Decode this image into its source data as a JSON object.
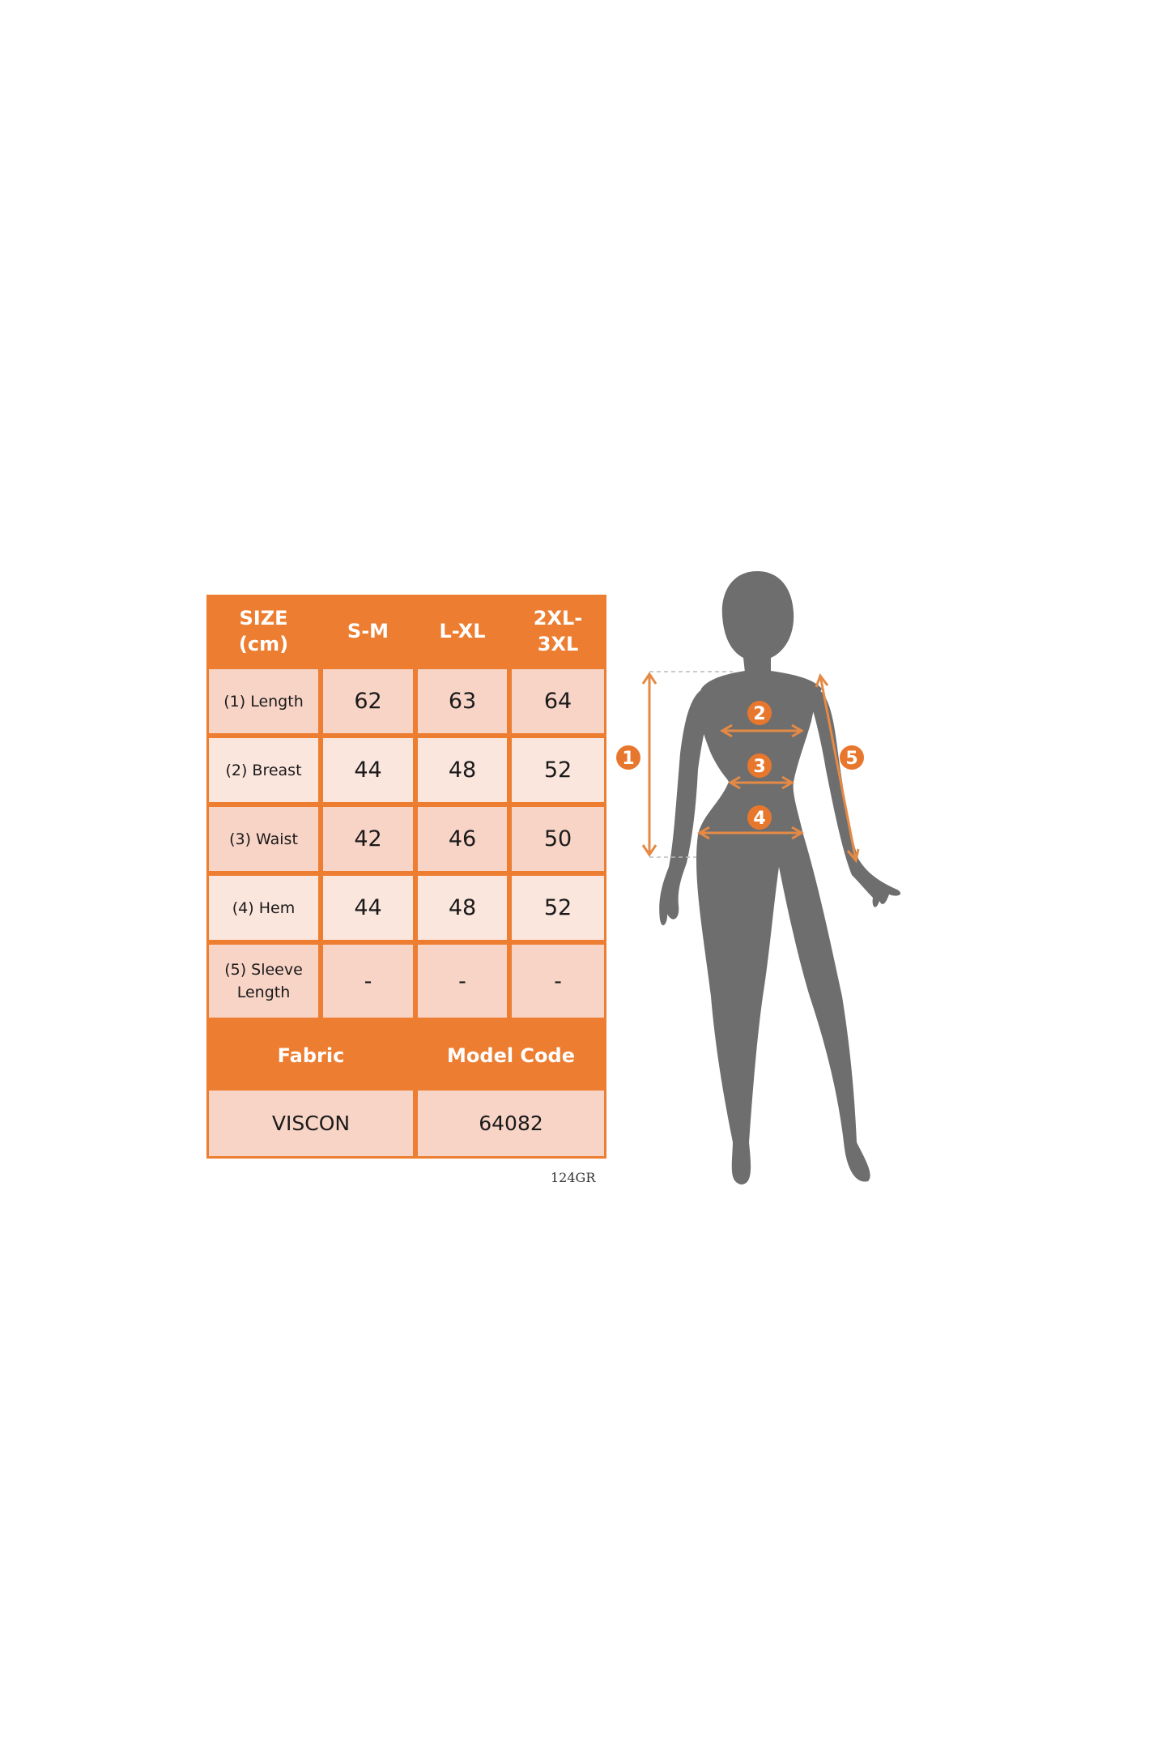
{
  "size_table": {
    "header": {
      "size_label": "SIZE\n(cm)",
      "sizes": [
        "S-M",
        "L-XL",
        "2XL-\n3XL"
      ]
    },
    "rows": [
      {
        "label": "(1) Length",
        "values": [
          "62",
          "63",
          "64"
        ]
      },
      {
        "label": "(2) Breast",
        "values": [
          "44",
          "48",
          "52"
        ]
      },
      {
        "label": "(3) Waist",
        "values": [
          "42",
          "46",
          "50"
        ]
      },
      {
        "label": "(4) Hem",
        "values": [
          "44",
          "48",
          "52"
        ]
      },
      {
        "label": "(5) Sleeve\nLength",
        "values": [
          "-",
          "-",
          "-"
        ]
      }
    ],
    "footer_headers": [
      "Fabric",
      "Model Code"
    ],
    "footer_values": [
      "VISCON",
      "64082"
    ]
  },
  "weight_code": "124GR",
  "figure": {
    "markers": [
      "1",
      "2",
      "3",
      "4",
      "5"
    ]
  },
  "colors": {
    "accent": "#ED7D31",
    "cell_dark": "#F8D4C6",
    "cell_light": "#FBE6DE",
    "silhouette": "#6E6E6E"
  }
}
